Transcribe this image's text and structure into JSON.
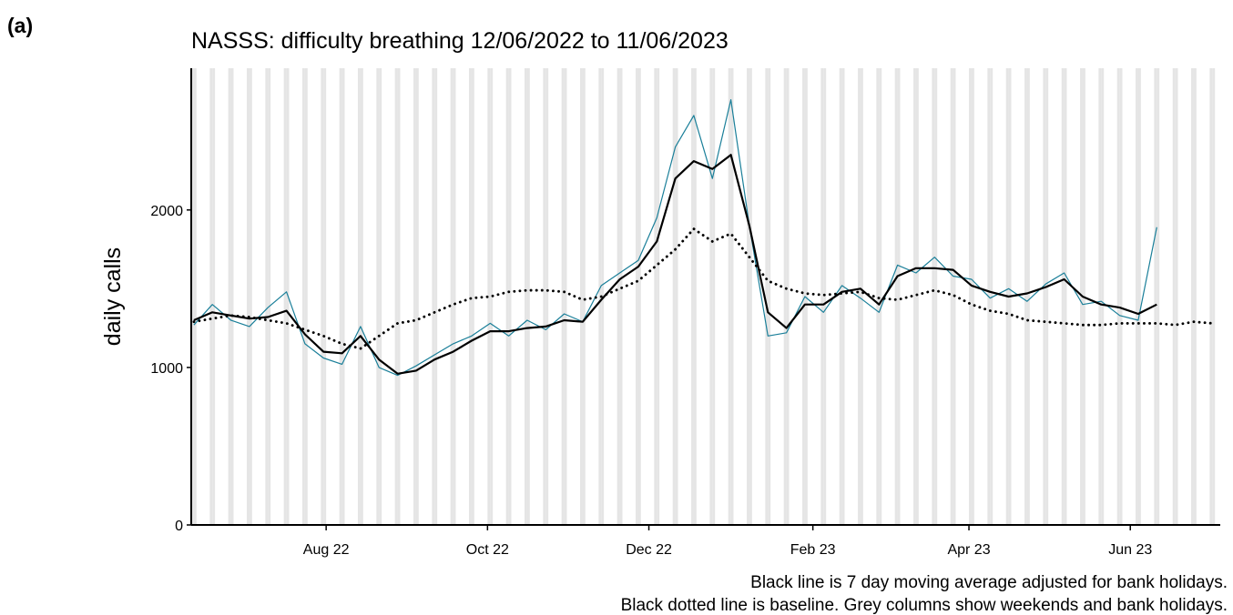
{
  "panel_label": "(a)",
  "chart_data": {
    "type": "line",
    "title": "NASSS: difficulty breathing 12/06/2022 to 11/06/2023",
    "y_label": "daily calls",
    "notes": [
      "Black line is 7 day moving average adjusted for bank holidays.",
      "Black dotted line is baseline. Grey columns show weekends and bank holidays."
    ],
    "x": [
      "2022-06-12",
      "2022-06-19",
      "2022-06-26",
      "2022-07-03",
      "2022-07-10",
      "2022-07-17",
      "2022-07-24",
      "2022-07-31",
      "2022-08-07",
      "2022-08-14",
      "2022-08-21",
      "2022-08-28",
      "2022-09-04",
      "2022-09-11",
      "2022-09-18",
      "2022-09-25",
      "2022-10-02",
      "2022-10-09",
      "2022-10-16",
      "2022-10-23",
      "2022-10-30",
      "2022-11-06",
      "2022-11-13",
      "2022-11-20",
      "2022-11-27",
      "2022-12-04",
      "2022-12-11",
      "2022-12-18",
      "2022-12-25",
      "2023-01-01",
      "2023-01-08",
      "2023-01-15",
      "2023-01-22",
      "2023-01-29",
      "2023-02-05",
      "2023-02-12",
      "2023-02-19",
      "2023-02-26",
      "2023-03-05",
      "2023-03-12",
      "2023-03-19",
      "2023-03-26",
      "2023-04-02",
      "2023-04-09",
      "2023-04-16",
      "2023-04-23",
      "2023-04-30",
      "2023-05-07",
      "2023-05-14",
      "2023-05-21",
      "2023-05-28",
      "2023-06-04",
      "2023-06-11",
      "2023-06-18",
      "2023-06-25",
      "2023-07-02"
    ],
    "series": [
      {
        "color": "#1a7f99",
        "width": 1.2,
        "values": [
          1270,
          1400,
          1300,
          1260,
          1380,
          1480,
          1150,
          1060,
          1020,
          1260,
          1000,
          950,
          1010,
          1080,
          1150,
          1200,
          1280,
          1200,
          1300,
          1240,
          1340,
          1290,
          1520,
          1600,
          1680,
          1950,
          2400,
          2600,
          2200,
          2700,
          1900,
          1200,
          1220,
          1450,
          1350,
          1520,
          1440,
          1350,
          1650,
          1600,
          1700,
          1580,
          1560,
          1440,
          1500,
          1420,
          1530,
          1600,
          1400,
          1420,
          1330,
          1300,
          1890,
          null,
          null,
          null
        ]
      },
      {
        "color": "#000000",
        "width": 2.2,
        "values": [
          1300,
          1350,
          1330,
          1310,
          1320,
          1360,
          1210,
          1100,
          1090,
          1200,
          1050,
          960,
          980,
          1050,
          1100,
          1170,
          1230,
          1230,
          1250,
          1260,
          1300,
          1290,
          1430,
          1560,
          1640,
          1800,
          2200,
          2310,
          2260,
          2350,
          1900,
          1350,
          1250,
          1400,
          1400,
          1480,
          1500,
          1400,
          1580,
          1630,
          1630,
          1620,
          1520,
          1480,
          1450,
          1470,
          1510,
          1560,
          1450,
          1400,
          1380,
          1340,
          1400,
          null,
          null,
          null
        ]
      },
      {
        "color": "#000000",
        "width": 2.2,
        "dash": "dotted",
        "values": [
          1290,
          1310,
          1330,
          1320,
          1300,
          1280,
          1240,
          1200,
          1150,
          1120,
          1200,
          1280,
          1300,
          1350,
          1400,
          1440,
          1450,
          1480,
          1490,
          1490,
          1480,
          1430,
          1450,
          1500,
          1550,
          1650,
          1750,
          1880,
          1800,
          1850,
          1700,
          1550,
          1500,
          1470,
          1460,
          1470,
          1480,
          1440,
          1430,
          1460,
          1490,
          1460,
          1400,
          1360,
          1340,
          1300,
          1290,
          1280,
          1270,
          1270,
          1280,
          1280,
          1280,
          1270,
          1290,
          1280
        ]
      }
    ],
    "xlim": [
      "2022-06-11",
      "2023-07-05"
    ],
    "xticks": [
      {
        "value": "2022-08-01",
        "label": "Aug 22"
      },
      {
        "value": "2022-10-01",
        "label": "Oct 22"
      },
      {
        "value": "2022-12-01",
        "label": "Dec 22"
      },
      {
        "value": "2023-02-01",
        "label": "Feb 23"
      },
      {
        "value": "2023-04-01",
        "label": "Apr 23"
      },
      {
        "value": "2023-06-01",
        "label": "Jun 23"
      }
    ],
    "ylim": [
      0,
      2900
    ],
    "yticks": [
      0,
      1000,
      2000
    ],
    "shade_weekends": true,
    "shade_color": "#e5e5e5"
  }
}
